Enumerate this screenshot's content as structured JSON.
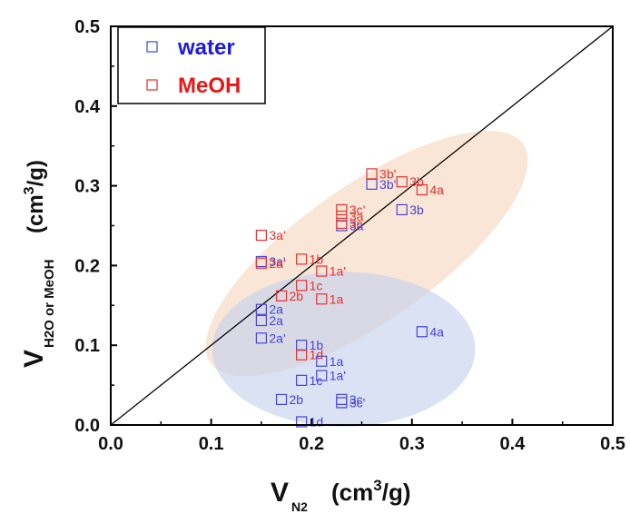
{
  "chart_data": {
    "type": "scatter",
    "xlim": [
      0.0,
      0.5
    ],
    "ylim": [
      0.0,
      0.5
    ],
    "x_ticks": [
      "0.0",
      "0.1",
      "0.2",
      "0.3",
      "0.4",
      "0.5"
    ],
    "y_ticks": [
      "0.0",
      "0.1",
      "0.2",
      "0.3",
      "0.4",
      "0.5"
    ],
    "xlabel": {
      "main": "V",
      "sub": "N2",
      "units": "(cm",
      "sup": "3",
      "units_end": "/g)"
    },
    "ylabel": {
      "main": "V",
      "sub": "H2O or MeOH",
      "units": "(cm",
      "sup": "3",
      "units_end": "/g)"
    },
    "reference_line": {
      "from": [
        0,
        0
      ],
      "to": [
        0.5,
        0.5
      ],
      "color": "#000000"
    },
    "legend": {
      "position": "top-left"
    },
    "ellipses": [
      {
        "cx": 0.255,
        "cy": 0.215,
        "rx": 0.19,
        "ry": 0.085,
        "angle_deg": 35,
        "color": "#f6d2b4",
        "opacity": 0.55
      },
      {
        "cx": 0.232,
        "cy": 0.095,
        "rx": 0.131,
        "ry": 0.097,
        "angle_deg": 0,
        "color": "#c6d2ec",
        "opacity": 0.65
      }
    ],
    "series": [
      {
        "name": "water",
        "color": "#4444dd",
        "points": [
          {
            "x": 0.15,
            "y": 0.205,
            "label": "3a'"
          },
          {
            "x": 0.15,
            "y": 0.145,
            "label": "2a"
          },
          {
            "x": 0.15,
            "y": 0.131,
            "label": "2a"
          },
          {
            "x": 0.15,
            "y": 0.109,
            "label": "2a'"
          },
          {
            "x": 0.17,
            "y": 0.032,
            "label": "2b"
          },
          {
            "x": 0.19,
            "y": 0.004,
            "label": "1d"
          },
          {
            "x": 0.19,
            "y": 0.056,
            "label": "1c"
          },
          {
            "x": 0.19,
            "y": 0.1,
            "label": "1b"
          },
          {
            "x": 0.21,
            "y": 0.062,
            "label": "1a'"
          },
          {
            "x": 0.21,
            "y": 0.08,
            "label": "1a"
          },
          {
            "x": 0.23,
            "y": 0.028,
            "label": "3c'"
          },
          {
            "x": 0.23,
            "y": 0.032,
            "label": "3c"
          },
          {
            "x": 0.23,
            "y": 0.25,
            "label": "3a"
          },
          {
            "x": 0.26,
            "y": 0.302,
            "label": "3b'"
          },
          {
            "x": 0.29,
            "y": 0.27,
            "label": "3b"
          },
          {
            "x": 0.31,
            "y": 0.117,
            "label": "4a"
          }
        ]
      },
      {
        "name": "MeOH",
        "color": "#e83030",
        "points": [
          {
            "x": 0.15,
            "y": 0.238,
            "label": "3a'"
          },
          {
            "x": 0.15,
            "y": 0.203,
            "label": "2a'"
          },
          {
            "x": 0.17,
            "y": 0.162,
            "label": "2b"
          },
          {
            "x": 0.19,
            "y": 0.208,
            "label": "1b"
          },
          {
            "x": 0.19,
            "y": 0.175,
            "label": "1c"
          },
          {
            "x": 0.19,
            "y": 0.088,
            "label": "1d"
          },
          {
            "x": 0.21,
            "y": 0.193,
            "label": "1a'"
          },
          {
            "x": 0.21,
            "y": 0.158,
            "label": "1a"
          },
          {
            "x": 0.23,
            "y": 0.27,
            "label": "3c'"
          },
          {
            "x": 0.23,
            "y": 0.262,
            "label": "3a"
          },
          {
            "x": 0.23,
            "y": 0.253,
            "label": "3c"
          },
          {
            "x": 0.26,
            "y": 0.315,
            "label": "3b'"
          },
          {
            "x": 0.29,
            "y": 0.305,
            "label": "3b"
          },
          {
            "x": 0.31,
            "y": 0.295,
            "label": "4a"
          }
        ]
      }
    ]
  }
}
